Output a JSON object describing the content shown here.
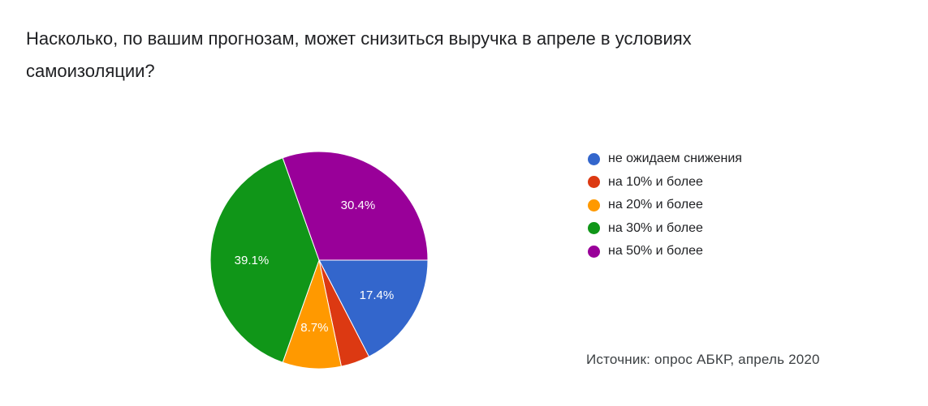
{
  "title": "Насколько, по вашим прогнозам, может снизиться выручка в апреле в условиях самоизоляции?",
  "source": "Источник: опрос АБКР, апрель 2020",
  "chart_data": {
    "type": "pie",
    "title": "Насколько, по вашим прогнозам, может снизиться выручка в апреле в условиях самоизоляции?",
    "legend_position": "right",
    "slices": [
      {
        "label": "не ожидаем снижения",
        "value": 17.4,
        "color": "#3366cc",
        "data_label": "17.4%"
      },
      {
        "label": "на 10% и более",
        "value": 4.3,
        "color": "#dc3912",
        "data_label": ""
      },
      {
        "label": "на 20% и более",
        "value": 8.7,
        "color": "#ff9900",
        "data_label": "8.7%"
      },
      {
        "label": "на 30% и более",
        "value": 39.1,
        "color": "#109618",
        "data_label": "39.1%"
      },
      {
        "label": "на 50% и более",
        "value": 30.4,
        "color": "#990099",
        "data_label": "30.4%"
      }
    ]
  }
}
